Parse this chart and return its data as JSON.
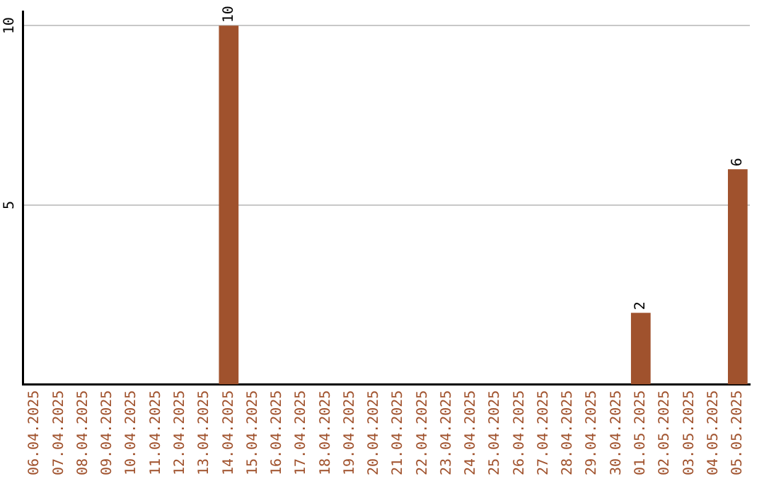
{
  "chart_data": {
    "type": "bar",
    "categories": [
      "06.04.2025",
      "07.04.2025",
      "08.04.2025",
      "09.04.2025",
      "10.04.2025",
      "11.04.2025",
      "12.04.2025",
      "13.04.2025",
      "14.04.2025",
      "15.04.2025",
      "16.04.2025",
      "17.04.2025",
      "18.04.2025",
      "19.04.2025",
      "20.04.2025",
      "21.04.2025",
      "22.04.2025",
      "23.04.2025",
      "24.04.2025",
      "25.04.2025",
      "26.04.2025",
      "27.04.2025",
      "28.04.2025",
      "29.04.2025",
      "30.04.2025",
      "01.05.2025",
      "02.05.2025",
      "03.05.2025",
      "04.05.2025",
      "05.05.2025"
    ],
    "values": [
      0,
      0,
      0,
      0,
      0,
      0,
      0,
      0,
      10,
      0,
      0,
      0,
      0,
      0,
      0,
      0,
      0,
      0,
      0,
      0,
      0,
      0,
      0,
      0,
      0,
      2,
      0,
      0,
      0,
      6
    ],
    "value_labels": [
      null,
      null,
      null,
      null,
      null,
      null,
      null,
      null,
      "10",
      null,
      null,
      null,
      null,
      null,
      null,
      null,
      null,
      null,
      null,
      null,
      null,
      null,
      null,
      null,
      null,
      "2",
      null,
      null,
      null,
      "6"
    ],
    "color": "#a0522d",
    "ylim": [
      0,
      10.4
    ],
    "yticks": [
      5,
      10
    ],
    "grid": "y",
    "legend": false
  }
}
